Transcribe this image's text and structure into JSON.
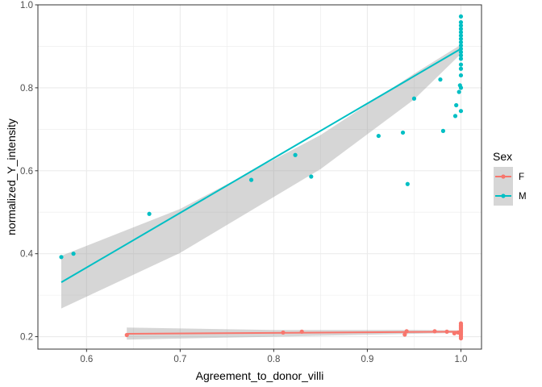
{
  "chart_data": {
    "type": "scatter",
    "xlabel": "Agreement_to_donor_villi",
    "ylabel": "normalized_Y_intensity",
    "xlim": [
      0.548,
      1.022
    ],
    "ylim": [
      0.17,
      1.0
    ],
    "x_ticks": [
      0.6,
      0.7,
      0.8,
      0.9,
      1.0
    ],
    "x_tick_labels": [
      "0.6",
      "0.7",
      "0.8",
      "0.9",
      "1.0"
    ],
    "y_ticks": [
      0.2,
      0.4,
      0.6,
      0.8,
      1.0
    ],
    "y_tick_labels": [
      "0.2",
      "0.4",
      "0.6",
      "0.8",
      "1.0"
    ],
    "grid": true,
    "legend": {
      "title": "Sex",
      "position": "right"
    },
    "series": [
      {
        "name": "F",
        "color": "#F8766D",
        "points": [
          [
            0.643,
            0.204
          ],
          [
            0.81,
            0.21
          ],
          [
            0.83,
            0.212
          ],
          [
            0.94,
            0.205
          ],
          [
            0.942,
            0.213
          ],
          [
            0.972,
            0.213
          ],
          [
            0.985,
            0.212
          ],
          [
            0.993,
            0.208
          ],
          [
            0.997,
            0.21
          ],
          [
            1.0,
            0.196
          ],
          [
            1.0,
            0.2
          ],
          [
            1.0,
            0.204
          ],
          [
            1.0,
            0.207
          ],
          [
            1.0,
            0.21
          ],
          [
            1.0,
            0.212
          ],
          [
            1.0,
            0.214
          ],
          [
            1.0,
            0.216
          ],
          [
            1.0,
            0.219
          ],
          [
            1.0,
            0.222
          ],
          [
            1.0,
            0.225
          ],
          [
            1.0,
            0.228
          ],
          [
            1.0,
            0.232
          ]
        ],
        "fit": {
          "x": [
            0.643,
            1.0
          ],
          "y": [
            0.207,
            0.212
          ]
        },
        "band": {
          "x": [
            0.643,
            0.8,
            0.95,
            1.0
          ],
          "upper": [
            0.222,
            0.216,
            0.216,
            0.215
          ],
          "lower": [
            0.193,
            0.2,
            0.207,
            0.209
          ]
        }
      },
      {
        "name": "M",
        "color": "#00BFC4",
        "points": [
          [
            0.573,
            0.392
          ],
          [
            0.586,
            0.4
          ],
          [
            0.667,
            0.496
          ],
          [
            0.776,
            0.578
          ],
          [
            0.823,
            0.638
          ],
          [
            0.84,
            0.586
          ],
          [
            0.912,
            0.684
          ],
          [
            0.938,
            0.692
          ],
          [
            0.943,
            0.568
          ],
          [
            0.95,
            0.774
          ],
          [
            0.978,
            0.82
          ],
          [
            0.981,
            0.696
          ],
          [
            0.994,
            0.732
          ],
          [
            0.995,
            0.758
          ],
          [
            0.998,
            0.79
          ],
          [
            0.999,
            0.806
          ],
          [
            1.0,
            0.744
          ],
          [
            1.0,
            0.8
          ],
          [
            1.0,
            0.83
          ],
          [
            1.0,
            0.846
          ],
          [
            1.0,
            0.856
          ],
          [
            1.0,
            0.87
          ],
          [
            1.0,
            0.878
          ],
          [
            1.0,
            0.886
          ],
          [
            1.0,
            0.894
          ],
          [
            1.0,
            0.902
          ],
          [
            1.0,
            0.91
          ],
          [
            1.0,
            0.918
          ],
          [
            1.0,
            0.926
          ],
          [
            1.0,
            0.934
          ],
          [
            1.0,
            0.942
          ],
          [
            1.0,
            0.95
          ],
          [
            1.0,
            0.958
          ],
          [
            1.0,
            0.972
          ]
        ],
        "fit": {
          "x": [
            0.573,
            1.0
          ],
          "y": [
            0.331,
            0.894
          ]
        },
        "band": {
          "x": [
            0.573,
            0.7,
            0.85,
            0.95,
            1.0
          ],
          "upper": [
            0.395,
            0.508,
            0.686,
            0.834,
            0.904
          ],
          "lower": [
            0.268,
            0.402,
            0.604,
            0.772,
            0.882
          ]
        }
      }
    ]
  }
}
